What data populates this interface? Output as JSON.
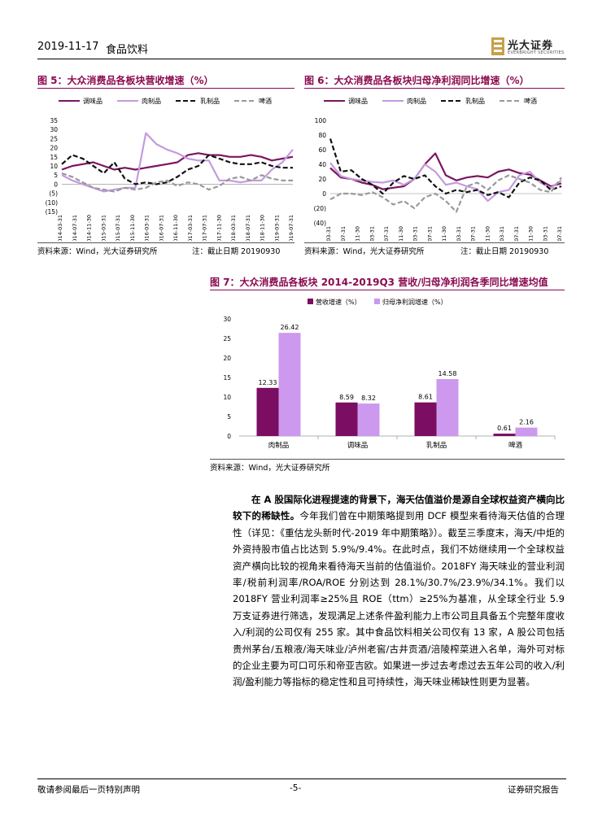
{
  "header": {
    "date": "2019-11-17",
    "sector": "食品饮料",
    "logo_cn": "光大证券",
    "logo_en": "EVERBRIGHT SECURITIES"
  },
  "figures": {
    "fig5": {
      "title": "图 5：大众消费品各板块营收增速（%）",
      "chart_data": {
        "type": "line",
        "title": "图 5：大众消费品各板块营收增速（%）",
        "x": [
          "2014-03-31",
          "2014-06-30",
          "2014-09-30",
          "2014-12-31",
          "2015-03-31",
          "2015-06-30",
          "2015-09-30",
          "2015-12-31",
          "2016-03-31",
          "2016-06-30",
          "2016-09-30",
          "2016-12-31",
          "2017-03-31",
          "2017-06-30",
          "2017-09-30",
          "2017-12-31",
          "2018-03-31",
          "2018-06-30",
          "2018-09-30",
          "2018-12-31",
          "2019-03-31",
          "2019-06-30",
          "2019-09-30"
        ],
        "tick_labels": [
          "2014-03-31",
          "2014-07-31",
          "2014-11-30",
          "2015-03-31",
          "2015-07-31",
          "2015-11-30",
          "2016-03-31",
          "2016-07-31",
          "2016-11-30",
          "2017-03-31",
          "2017-07-31",
          "2017-11-30",
          "2018-03-31",
          "2018-07-31",
          "2018-11-30",
          "2019-03-31",
          "2019-07-31"
        ],
        "yticks": [
          "35",
          "30",
          "25",
          "20",
          "15",
          "10",
          "5",
          "0",
          "(5)",
          "(10)",
          "(15)"
        ],
        "ylim": [
          -15,
          35
        ],
        "series": [
          {
            "name": "调味品",
            "color": "#7b1660",
            "dash": "solid",
            "values": [
              8,
              10,
              11,
              12,
              10,
              8,
              9,
              8,
              9,
              10,
              11,
              12,
              16,
              17,
              16,
              16,
              15,
              15,
              16,
              15,
              13,
              14,
              15
            ]
          },
          {
            "name": "肉制品",
            "color": "#c49ae0",
            "dash": "solid",
            "values": [
              5,
              2,
              0,
              -2,
              -4,
              -3,
              -2,
              -2,
              28,
              22,
              19,
              17,
              14,
              13,
              13,
              2,
              2,
              1,
              2,
              2,
              8,
              12,
              19
            ]
          },
          {
            "name": "乳制品",
            "color": "#111111",
            "dash": "dashed",
            "values": [
              11,
              16,
              14,
              10,
              6,
              12,
              3,
              0,
              1,
              0,
              1,
              4,
              8,
              10,
              16,
              14,
              12,
              11,
              11,
              12,
              10,
              9,
              9
            ]
          },
          {
            "name": "啤酒",
            "color": "#999999",
            "dash": "dashed",
            "values": [
              6,
              4,
              1,
              -2,
              -3,
              -4,
              -2,
              -3,
              -2,
              1,
              2,
              -1,
              1,
              0,
              -3,
              -1,
              3,
              4,
              2,
              5,
              3,
              2,
              2
            ]
          }
        ]
      }
    },
    "fig6": {
      "title": "图 6：大众消费品各板块归母净利润同比增速（%）",
      "chart_data": {
        "type": "line",
        "title": "图 6：大众消费品各板块归母净利润同比增速（%）",
        "x": [
          "2014-03-31",
          "2014-06-30",
          "2014-09-30",
          "2014-12-31",
          "2015-03-31",
          "2015-06-30",
          "2015-09-30",
          "2015-12-31",
          "2016-03-31",
          "2016-06-30",
          "2016-09-30",
          "2016-12-31",
          "2017-03-31",
          "2017-06-30",
          "2017-09-30",
          "2017-12-31",
          "2018-03-31",
          "2018-06-30",
          "2018-09-30",
          "2018-12-31",
          "2019-03-31",
          "2019-06-30",
          "2019-09-30"
        ],
        "tick_labels": [
          "2014-03-31",
          "2014-07-31",
          "2014-11-30",
          "2015-03-31",
          "2015-07-31",
          "2015-11-30",
          "2016-03-31",
          "2016-07-31",
          "2016-11-30",
          "2017-03-31",
          "2017-07-31",
          "2017-11-30",
          "2018-03-31",
          "2018-07-31",
          "2018-11-30",
          "2019-03-31",
          "2019-07-31"
        ],
        "yticks": [
          "100",
          "80",
          "60",
          "40",
          "20",
          "0",
          "(20)",
          "(40)"
        ],
        "ylim": [
          -40,
          100
        ],
        "series": [
          {
            "name": "调味品",
            "color": "#7b1660",
            "dash": "solid",
            "values": [
              35,
              22,
              20,
              15,
              12,
              6,
              8,
              10,
              20,
              40,
              55,
              25,
              18,
              22,
              24,
              22,
              30,
              33,
              28,
              26,
              18,
              10,
              14
            ]
          },
          {
            "name": "肉制品",
            "color": "#c49ae0",
            "dash": "solid",
            "values": [
              42,
              24,
              20,
              18,
              16,
              15,
              18,
              12,
              20,
              40,
              30,
              12,
              15,
              10,
              6,
              -10,
              2,
              5,
              25,
              30,
              15,
              8,
              18
            ]
          },
          {
            "name": "乳制品",
            "color": "#111111",
            "dash": "dashed",
            "values": [
              75,
              30,
              32,
              20,
              12,
              0,
              15,
              24,
              20,
              25,
              10,
              0,
              5,
              2,
              5,
              -2,
              2,
              -5,
              15,
              22,
              18,
              5,
              10
            ]
          },
          {
            "name": "啤酒",
            "color": "#999999",
            "dash": "dashed",
            "values": [
              -8,
              0,
              0,
              -2,
              2,
              -5,
              -15,
              -10,
              -20,
              -5,
              0,
              -10,
              -25,
              10,
              15,
              5,
              18,
              25,
              20,
              15,
              5,
              2,
              22
            ]
          }
        ]
      }
    },
    "fig7": {
      "title": "图 7：大众消费品各板块 2014-2019Q3 营收/归母净利润各季同比增速均值",
      "chart_data": {
        "type": "bar",
        "title": "图 7：大众消费品各板块 2014-2019Q3 营收/归母净利润各季同比增速均值",
        "categories": [
          "肉制品",
          "调味品",
          "乳制品",
          "啤酒"
        ],
        "yticks": [
          "30",
          "25",
          "20",
          "15",
          "10",
          "5",
          "0"
        ],
        "ylim": [
          0,
          30
        ],
        "series": [
          {
            "name": "营收增速（%）",
            "color": "#7b0d63",
            "values": [
              12.33,
              8.59,
              8.61,
              0.61
            ],
            "labels": [
              "12.33",
              "8.59",
              "8.61",
              "0.61"
            ]
          },
          {
            "name": "归母净利润增速（%）",
            "color": "#cc99ee",
            "values": [
              26.42,
              8.32,
              14.58,
              2.16
            ],
            "labels": [
              "26.42",
              "8.32",
              "14.58",
              "2.16"
            ]
          }
        ]
      }
    }
  },
  "sources": {
    "fig56_source": "资料来源：Wind，光大证券研究所",
    "fig56_note": "注：截止日期 20190930",
    "fig7_source": "资料来源：Wind，光大证券研究所"
  },
  "body": {
    "lead": "在 A 股国际化进程提速的背景下，海天估值溢价是源自全球权益资产横向比较下的稀缺性。",
    "text": "今年我们曾在中期策略提到用 DCF 模型来看待海天估值的合理性（详见：《重估龙头新时代-2019 年中期策略》）。截至三季度末，海天/中炬的外资持股市值占比达到 5.9%/9.4%。在此时点，我们不妨继续用一个全球权益资产横向比较的视角来看待海天当前的估值溢价。2018FY 海天味业的营业利润率/税前利润率/ROA/ROE 分别达到 28.1%/30.7%/23.9%/34.1%。我们以 2018FY 营业利润率≥25%且 ROE（ttm）≥25%为基准，从全球全行业 5.9 万支证券进行筛选，发现满足上述条件盈利能力上市公司且具备五个完整年度收入/利润的公司仅有 255 家。其中食品饮料相关公司仅有 13 家，A 股公司包括贵州茅台/五粮液/海天味业/泸州老窖/古井贡酒/涪陵榨菜进入名单，海外可对标的企业主要为可口可乐和帝亚吉欧。如果进一步过去考虑过去五年公司的收入/利润/盈利能力等指标的稳定性和且可持续性，海天味业稀缺性则更为显著。"
  },
  "footer": {
    "left": "敬请参阅最后一页特别声明",
    "center": "-5-",
    "right": "证券研究报告"
  }
}
